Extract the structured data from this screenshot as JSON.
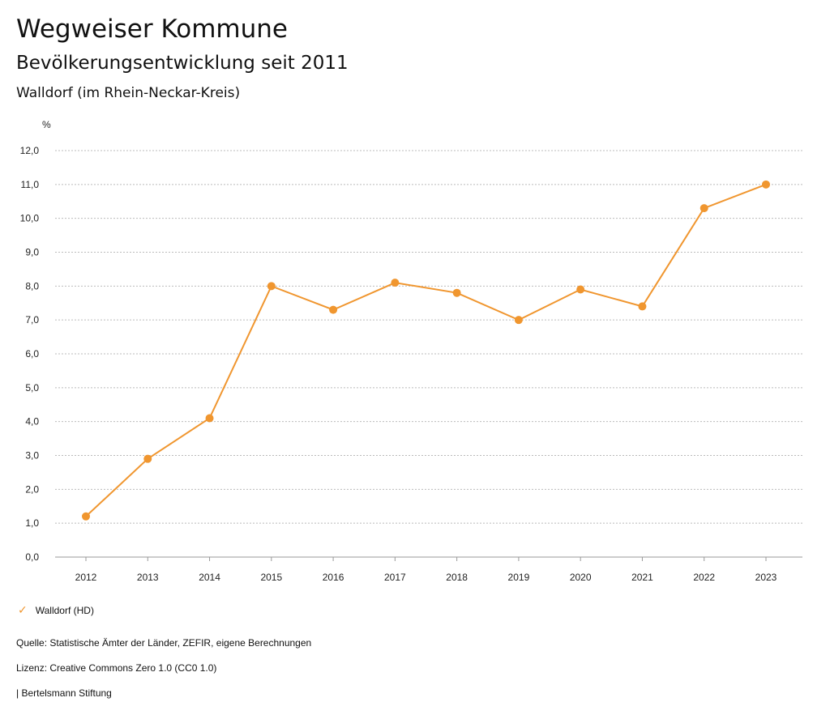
{
  "header": {
    "title": "Wegweiser Kommune",
    "subtitle": "Bevölkerungsentwicklung seit 2011",
    "region": "Walldorf (im Rhein-Neckar-Kreis)"
  },
  "chart_data": {
    "type": "line",
    "ylabel": "%",
    "ylim": [
      0,
      12
    ],
    "yticks": [
      "0,0",
      "1,0",
      "2,0",
      "3,0",
      "4,0",
      "5,0",
      "6,0",
      "7,0",
      "8,0",
      "9,0",
      "10,0",
      "11,0",
      "12,0"
    ],
    "categories": [
      "2012",
      "2013",
      "2014",
      "2015",
      "2016",
      "2017",
      "2018",
      "2019",
      "2020",
      "2021",
      "2022",
      "2023"
    ],
    "series": [
      {
        "name": "Walldorf (HD)",
        "color": "#f0962f",
        "values": [
          1.2,
          2.9,
          4.1,
          8.0,
          7.3,
          8.1,
          7.8,
          7.0,
          7.9,
          7.4,
          10.3,
          11.0
        ]
      }
    ],
    "grid": true,
    "legend_placement": "bottom-left"
  },
  "footer": {
    "source": "Quelle: Statistische Ämter der Länder, ZEFIR, eigene Berechnungen",
    "license": "Lizenz: Creative Commons Zero 1.0 (CC0 1.0)",
    "brand": "| Bertelsmann Stiftung"
  }
}
